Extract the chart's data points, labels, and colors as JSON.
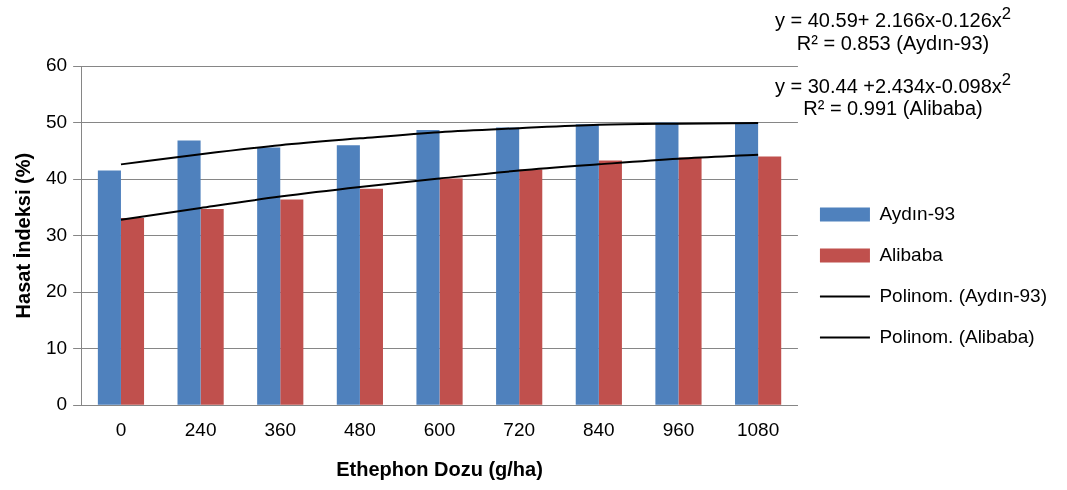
{
  "chart_data": {
    "type": "bar",
    "xlabel": "Ethephon Dozu (g/ha)",
    "ylabel": "Hasat İndeksi (%)",
    "categories": [
      "0",
      "240",
      "360",
      "480",
      "600",
      "720",
      "840",
      "960",
      "1080"
    ],
    "series": [
      {
        "name": "Aydın-93",
        "color": "#4f81bd",
        "values": [
          41.5,
          46.8,
          45.6,
          46.0,
          48.7,
          49.1,
          49.7,
          50.0,
          50.0
        ]
      },
      {
        "name": "Alibaba",
        "color": "#c0504d",
        "values": [
          33.1,
          34.7,
          36.4,
          38.3,
          40.1,
          41.7,
          43.3,
          43.8,
          44.0
        ]
      },
      {
        "name": "Polinom. (Aydın-93)",
        "type": "line",
        "color": "#000000",
        "values": [
          42.6,
          44.4,
          46.0,
          47.2,
          48.3,
          49.0,
          49.6,
          49.8,
          49.9
        ]
      },
      {
        "name": "Polinom. (Alibaba)",
        "type": "line",
        "color": "#000000",
        "values": [
          32.8,
          34.9,
          36.9,
          38.6,
          40.1,
          41.5,
          42.6,
          43.6,
          44.3
        ]
      }
    ],
    "ylim": [
      0,
      60
    ],
    "yticks": [
      0,
      10,
      20,
      30,
      40,
      50,
      60
    ],
    "grid": "y",
    "legend": "right",
    "marker": "none",
    "line_style": "solid",
    "annotations": [
      "y =  40.59+ 2.166x-0.126x$^{2}$\nR² = 0.853 (Aydın-93)",
      "y =  30.44 +2.434x-0.098x$^{2}$\nR² = 0.991 (Alibaba)"
    ]
  }
}
